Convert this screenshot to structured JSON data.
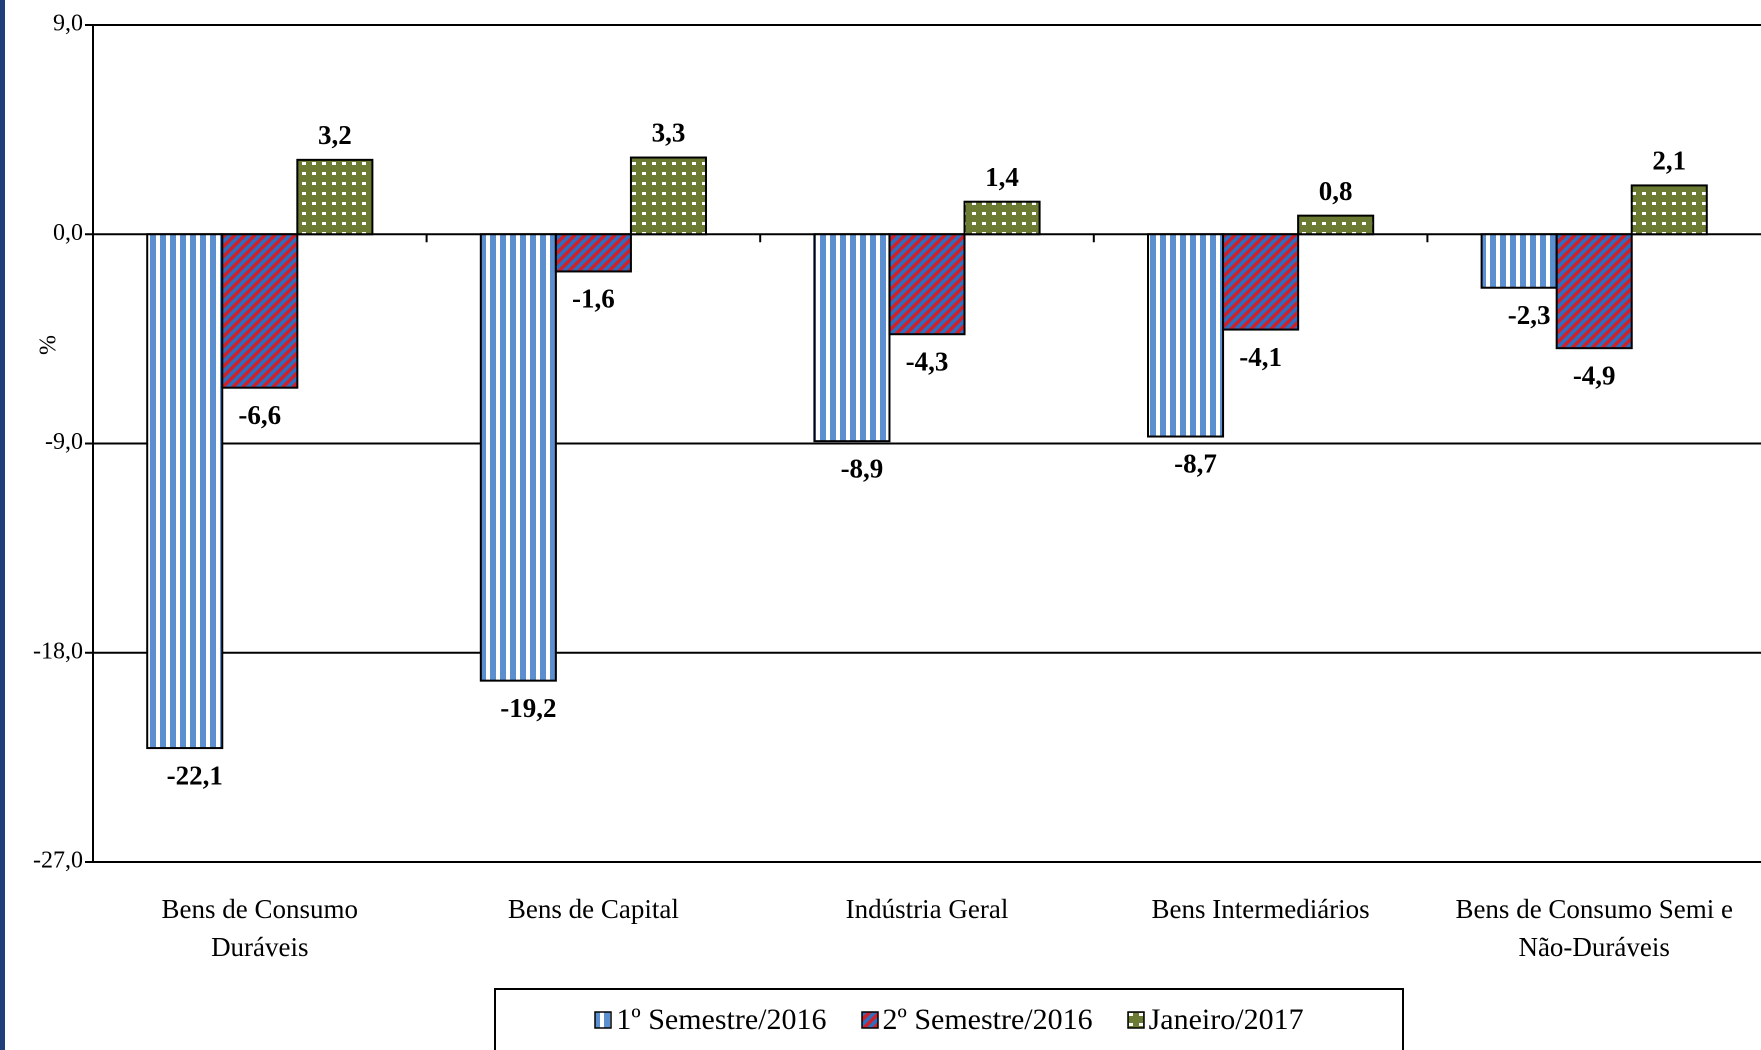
{
  "chart_data": {
    "type": "bar",
    "y_label": "%",
    "categories": [
      "Bens de Consumo Duráveis",
      "Bens de Capital",
      "Indústria Geral",
      "Bens Intermediários",
      "Bens de Consumo Semi e Não-Duráveis"
    ],
    "series": [
      {
        "name": "1º Semestre/2016",
        "color": "#5b8fd0",
        "pattern": "vertical-stripes",
        "values": [
          -22.1,
          -19.2,
          -8.9,
          -8.7,
          -2.3
        ],
        "value_labels": [
          "-22,1",
          "-19,2",
          "-8,9",
          "-8,7",
          "-2,3"
        ]
      },
      {
        "name": "2º Semestre/2016",
        "color": "#2d6ec0",
        "pattern": "diagonal-stripes",
        "values": [
          -6.6,
          -1.6,
          -4.3,
          -4.1,
          -4.9
        ],
        "value_labels": [
          "-6,6",
          "-1,6",
          "-4,3",
          "-4,1",
          "-4,9"
        ]
      },
      {
        "name": "Janeiro/2017",
        "color": "#6b7b33",
        "pattern": "dots",
        "values": [
          3.2,
          3.3,
          1.4,
          0.8,
          2.1
        ],
        "value_labels": [
          "3,2",
          "3,3",
          "1,4",
          "0,8",
          "2,1"
        ]
      }
    ],
    "ylim": [
      -27,
      9
    ],
    "yticks": [
      {
        "value": -27,
        "label": "-27,0"
      },
      {
        "value": -18,
        "label": "-18,0"
      },
      {
        "value": -9,
        "label": "-9,0"
      },
      {
        "value": 0,
        "label": "0,0"
      },
      {
        "value": 9,
        "label": "9,0"
      }
    ],
    "grid": true,
    "legend": "bottom"
  }
}
